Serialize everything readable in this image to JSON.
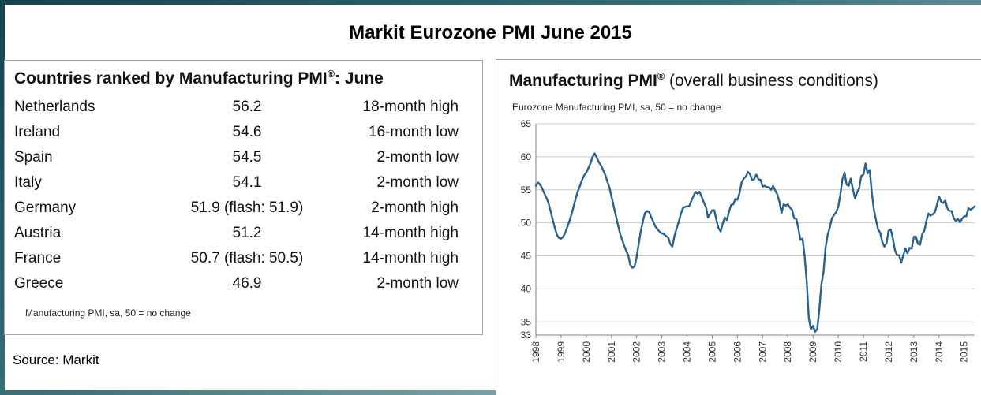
{
  "page": {
    "title": "Markit Eurozone PMI June 2015",
    "source": "Source: Markit"
  },
  "table": {
    "title_main": "Countries ranked by Manufacturing PMI",
    "title_sup": "®",
    "title_suffix": ": June",
    "rows": [
      {
        "country": "Netherlands",
        "value": "56.2",
        "note": "18-month high"
      },
      {
        "country": "Ireland",
        "value": "54.6",
        "note": "16-month low"
      },
      {
        "country": "Spain",
        "value": "54.5",
        "note": "2-month low"
      },
      {
        "country": "Italy",
        "value": "54.1",
        "note": "2-month low"
      },
      {
        "country": "Germany",
        "value": "51.9 (flash: 51.9)",
        "note": "2-month high"
      },
      {
        "country": "Austria",
        "value": "51.2",
        "note": "14-month high"
      },
      {
        "country": "France",
        "value": "50.7 (flash: 50.5)",
        "note": "14-month high"
      },
      {
        "country": "Greece",
        "value": "46.9",
        "note": "2-month low"
      }
    ],
    "footnote": "Manufacturing PMI, sa, 50 = no change"
  },
  "chart": {
    "title_main": "Manufacturing PMI",
    "title_sup": "®",
    "title_suffix": " (overall business conditions)",
    "subtitle": "Eurozone Manufacturing PMI, sa, 50 = no change",
    "line_color": "#26618f",
    "grid_color": "#c9c9c9",
    "axis_color": "#808080",
    "tick_color": "#333333"
  },
  "chart_data": {
    "type": "line",
    "title": "Manufacturing PMI (overall business conditions)",
    "series_name": "Eurozone Manufacturing PMI, sa",
    "x_start_year": 1998,
    "x_frequency": "monthly",
    "ylim": [
      33,
      65
    ],
    "ylabels": [
      33,
      35,
      40,
      45,
      50,
      55,
      60,
      65
    ],
    "xticks": [
      1998,
      1999,
      2000,
      2001,
      2002,
      2003,
      2004,
      2005,
      2006,
      2007,
      2008,
      2009,
      2010,
      2011,
      2012,
      2013,
      2014,
      2015
    ],
    "values": [
      55.6,
      56.1,
      55.8,
      55.2,
      54.5,
      53.8,
      53.0,
      51.8,
      50.5,
      49.3,
      48.2,
      47.7,
      47.6,
      47.9,
      48.5,
      49.4,
      50.3,
      51.3,
      52.5,
      53.7,
      54.8,
      55.6,
      56.5,
      57.2,
      57.6,
      58.3,
      59.0,
      60.0,
      60.5,
      59.9,
      59.2,
      58.7,
      58.0,
      57.3,
      56.3,
      55.4,
      54.0,
      52.6,
      51.2,
      49.8,
      48.5,
      47.5,
      46.6,
      45.8,
      45.0,
      43.6,
      43.2,
      43.4,
      44.8,
      46.9,
      48.8,
      50.3,
      51.5,
      51.8,
      51.6,
      50.8,
      50.1,
      49.4,
      49.0,
      48.6,
      48.4,
      48.3,
      48.0,
      47.8,
      46.8,
      46.4,
      48.0,
      49.1,
      50.1,
      51.3,
      52.2,
      52.4,
      52.5,
      52.5,
      53.3,
      54.0,
      54.7,
      54.4,
      54.7,
      53.9,
      53.1,
      52.4,
      50.8,
      51.4,
      51.9,
      51.9,
      50.4,
      49.2,
      48.7,
      49.9,
      50.8,
      50.4,
      51.7,
      52.7,
      52.8,
      53.6,
      53.5,
      54.5,
      56.1,
      56.7,
      57.0,
      57.7,
      57.4,
      56.5,
      56.6,
      57.3,
      56.6,
      56.5,
      55.5,
      55.6,
      55.4,
      55.4,
      55.0,
      55.6,
      54.9,
      54.3,
      53.2,
      51.5,
      52.8,
      52.6,
      52.8,
      52.3,
      52.0,
      50.7,
      50.6,
      49.2,
      47.4,
      47.6,
      45.0,
      41.1,
      35.6,
      33.9,
      34.4,
      33.5,
      33.9,
      36.8,
      40.7,
      42.6,
      46.3,
      48.2,
      49.3,
      50.7,
      51.2,
      51.6,
      52.4,
      54.2,
      56.6,
      57.6,
      55.8,
      55.6,
      56.7,
      55.1,
      53.7,
      54.6,
      55.3,
      57.1,
      57.3,
      59.0,
      57.5,
      58.0,
      54.6,
      52.0,
      50.4,
      49.0,
      48.5,
      47.1,
      46.4,
      46.9,
      48.8,
      49.0,
      47.7,
      45.9,
      45.1,
      45.1,
      44.0,
      45.1,
      46.1,
      45.4,
      46.2,
      46.1,
      47.9,
      47.9,
      46.8,
      46.7,
      48.3,
      48.8,
      50.3,
      51.4,
      51.1,
      51.3,
      51.6,
      52.7,
      54.0,
      53.2,
      53.0,
      53.4,
      52.2,
      51.8,
      51.8,
      50.7,
      50.3,
      50.6,
      50.1,
      50.6,
      51.0,
      51.0,
      52.2,
      52.0,
      52.2,
      52.5
    ]
  }
}
